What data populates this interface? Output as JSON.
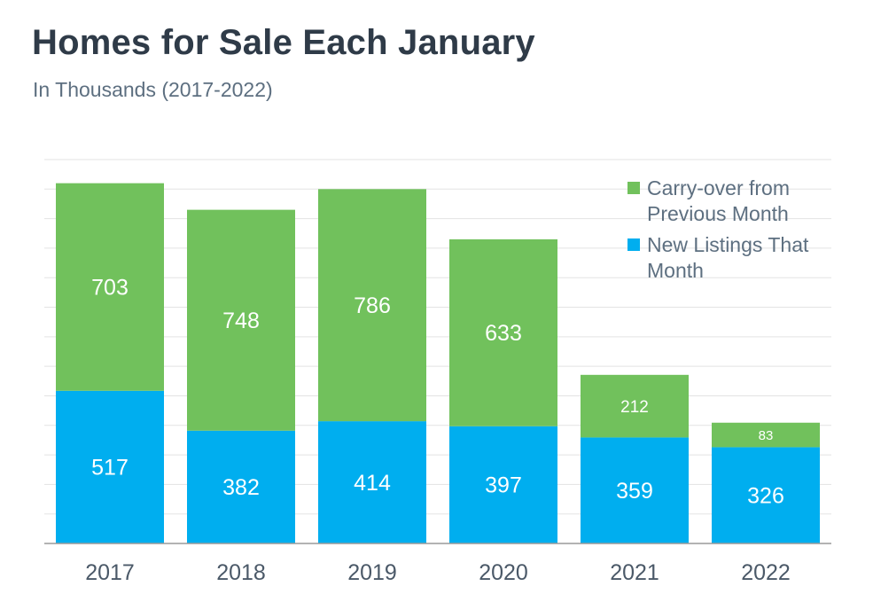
{
  "chart_data": {
    "type": "bar",
    "stacked": true,
    "title": "Homes for Sale Each January",
    "subtitle": "In Thousands (2017-2022)",
    "categories": [
      "2017",
      "2018",
      "2019",
      "2020",
      "2021",
      "2022"
    ],
    "series": [
      {
        "name": "New Listings That Month",
        "values": [
          517,
          382,
          414,
          397,
          359,
          326
        ],
        "color": "#00aeef"
      },
      {
        "name": "Carry-over from Previous Month",
        "values": [
          703,
          748,
          786,
          633,
          212,
          83
        ],
        "color": "#71c15c"
      }
    ],
    "legend_position": "top-right",
    "grid": true,
    "ylim": [
      0,
      1300
    ]
  }
}
